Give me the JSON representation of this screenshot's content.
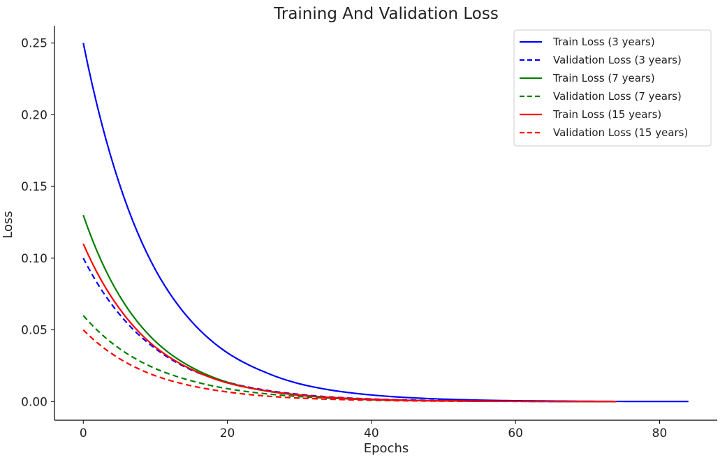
{
  "chart_data": {
    "type": "line",
    "title": "Training And Validation Loss",
    "xlabel": "Epochs",
    "ylabel": "Loss",
    "xlim": [
      -4,
      88
    ],
    "ylim": [
      -0.013,
      0.262
    ],
    "xticks": [
      "0",
      "20",
      "40",
      "60",
      "80"
    ],
    "yticks": [
      "0.00",
      "0.05",
      "0.10",
      "0.15",
      "0.20",
      "0.25"
    ],
    "grid": false,
    "legend_position": "top-right",
    "series": [
      {
        "name": "Train Loss (3 years)",
        "color": "#0000ff",
        "dash": "solid",
        "x": [
          0,
          5,
          10,
          15,
          20,
          25,
          30,
          35,
          40,
          45,
          50,
          55,
          60,
          65,
          70,
          75,
          80,
          84
        ],
        "y": [
          0.25,
          0.152,
          0.092,
          0.056,
          0.034,
          0.021,
          0.0124,
          0.0075,
          0.0046,
          0.0028,
          0.0017,
          0.001,
          0.0006,
          0.0004,
          0.0002,
          0.0001,
          0.0001,
          0.0001
        ]
      },
      {
        "name": "Validation Loss (3 years)",
        "color": "#0000ff",
        "dash": "dashed",
        "x": [
          0,
          5,
          10,
          15,
          20,
          25,
          30,
          35,
          40,
          45,
          50,
          55,
          60,
          65,
          70,
          74
        ],
        "y": [
          0.1,
          0.061,
          0.037,
          0.022,
          0.0135,
          0.0082,
          0.005,
          0.003,
          0.0018,
          0.0011,
          0.0007,
          0.0004,
          0.0002,
          0.0001,
          0.0001,
          0.0001
        ]
      },
      {
        "name": "Train Loss (7 years)",
        "color": "#008000",
        "dash": "solid",
        "x": [
          0,
          5,
          10,
          15,
          20,
          25,
          30,
          35,
          40,
          45,
          50,
          55,
          60,
          65,
          70,
          74
        ],
        "y": [
          0.13,
          0.074,
          0.042,
          0.024,
          0.0135,
          0.0077,
          0.0044,
          0.0025,
          0.0014,
          0.0008,
          0.0005,
          0.0003,
          0.0002,
          0.0001,
          0.0001,
          0.0001
        ]
      },
      {
        "name": "Validation Loss (7 years)",
        "color": "#008000",
        "dash": "dashed",
        "x": [
          0,
          5,
          10,
          15,
          20,
          25,
          30,
          35,
          40,
          45,
          50,
          55,
          60,
          65,
          70,
          74
        ],
        "y": [
          0.06,
          0.037,
          0.023,
          0.0145,
          0.009,
          0.0056,
          0.0035,
          0.0022,
          0.0013,
          0.0008,
          0.0005,
          0.0003,
          0.0002,
          0.0001,
          0.0001,
          0.0001
        ]
      },
      {
        "name": "Train Loss (15 years)",
        "color": "#ff0000",
        "dash": "solid",
        "x": [
          0,
          5,
          10,
          15,
          20,
          25,
          30,
          35,
          40,
          45,
          50,
          55,
          60,
          65,
          70,
          74
        ],
        "y": [
          0.11,
          0.065,
          0.038,
          0.0225,
          0.013,
          0.0078,
          0.0046,
          0.0027,
          0.0016,
          0.0009,
          0.0005,
          0.0003,
          0.0002,
          0.0001,
          0.0001,
          0.0001
        ]
      },
      {
        "name": "Validation Loss (15 years)",
        "color": "#ff0000",
        "dash": "dashed",
        "x": [
          0,
          5,
          10,
          15,
          20,
          25,
          30,
          35,
          40,
          45,
          50,
          55,
          60,
          65,
          70,
          74
        ],
        "y": [
          0.05,
          0.03,
          0.018,
          0.011,
          0.0067,
          0.004,
          0.0024,
          0.0015,
          0.0009,
          0.0005,
          0.0003,
          0.0002,
          0.0001,
          0.0001,
          0.0001,
          0.0001
        ]
      }
    ]
  }
}
